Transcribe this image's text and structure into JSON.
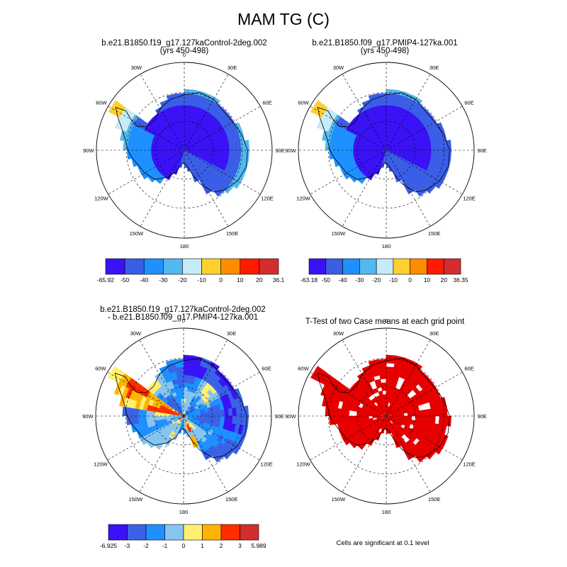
{
  "main_title": "MAM TG (C)",
  "longitude_labels": [
    "0",
    "30E",
    "60E",
    "90E",
    "120E",
    "150E",
    "180",
    "150W",
    "120W",
    "90W",
    "60W",
    "30W"
  ],
  "footnote": "Cells are significant at 0.1 level",
  "colors": {
    "cold_scale": [
      "#3a12f5",
      "#3a5ee6",
      "#1e90ff",
      "#52b8f0",
      "#c6ebf8",
      "#ffd02d",
      "#ff8c00",
      "#ff1a00",
      "#d42d2d"
    ],
    "diff_scale": [
      "#3a12f5",
      "#3a62e6",
      "#1e90ff",
      "#86c5f0",
      "#fff06e",
      "#ffb300",
      "#ff2d00",
      "#d42d2d"
    ],
    "significant": "#e60000"
  },
  "chart_data": [
    {
      "type": "heatmap",
      "projection": "south-polar-stereographic",
      "title_line1": "b.e21.B1850.f19_g17.127kaControl-2deg.002",
      "title_line2": "(yrs 450-498)",
      "legend_labels": [
        "-65.92",
        "-50",
        "-40",
        "-30",
        "-20",
        "-10",
        "0",
        "10",
        "20",
        "36.1"
      ],
      "levels": [
        -65.92,
        -50,
        -40,
        -30,
        -20,
        -10,
        0,
        10,
        20,
        36.1
      ]
    },
    {
      "type": "heatmap",
      "projection": "south-polar-stereographic",
      "title_line1": "b.e21.B1850.f09_g17.PMIP4-127ka.001",
      "title_line2": "(yrs 450-498)",
      "legend_labels": [
        "-63.18",
        "-50",
        "-40",
        "-30",
        "-20",
        "-10",
        "0",
        "10",
        "20",
        "36.35"
      ],
      "levels": [
        -63.18,
        -50,
        -40,
        -30,
        -20,
        -10,
        0,
        10,
        20,
        36.35
      ]
    },
    {
      "type": "heatmap",
      "projection": "south-polar-stereographic",
      "title_line1": "b.e21.B1850.f19_g17.127kaControl-2deg.002",
      "title_line2": "- b.e21.B1850.f09_g17.PMIP4-127ka.001",
      "legend_labels": [
        "-6.925",
        "-3",
        "-2",
        "-1",
        "0",
        "1",
        "2",
        "3",
        "5.989"
      ],
      "levels": [
        -6.925,
        -3,
        -2,
        -1,
        0,
        1,
        2,
        3,
        5.989
      ]
    },
    {
      "type": "heatmap",
      "projection": "south-polar-stereographic",
      "title_line1": "T-Test of two Case means at each grid point",
      "significance_level": 0.1
    }
  ]
}
